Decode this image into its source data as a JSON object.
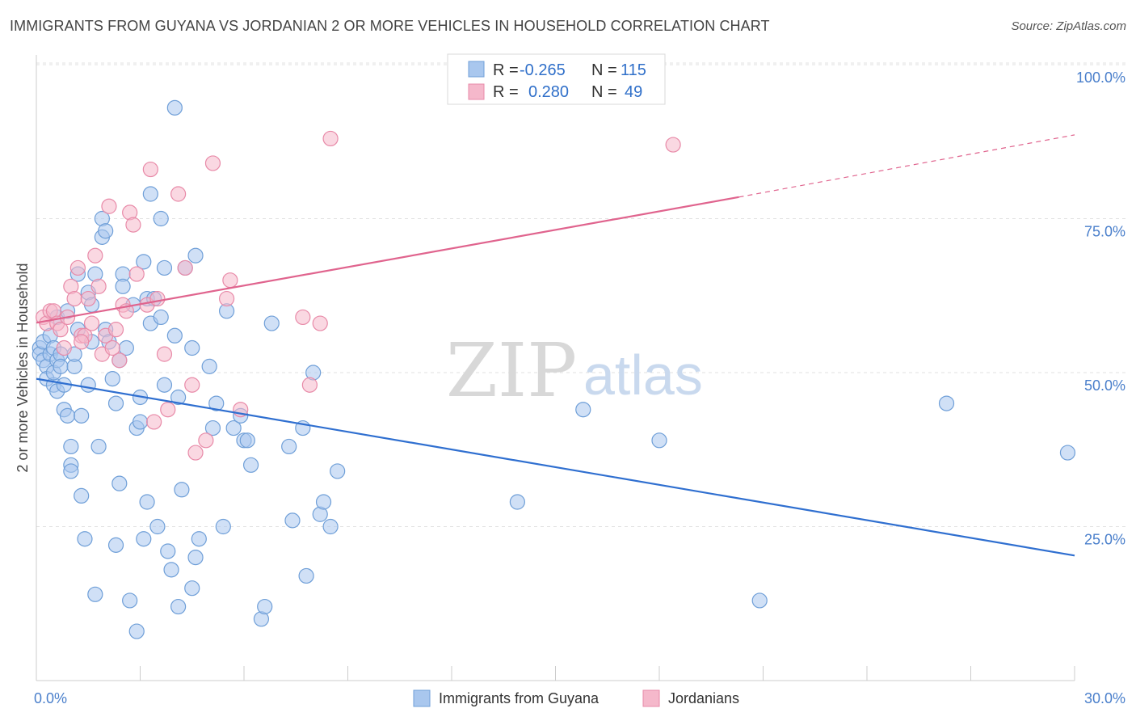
{
  "header": {
    "title": "IMMIGRANTS FROM GUYANA VS JORDANIAN 2 OR MORE VEHICLES IN HOUSEHOLD CORRELATION CHART",
    "source": "Source: ZipAtlas.com"
  },
  "watermark": {
    "zip": "ZIP",
    "atlas": "atlas"
  },
  "legend": {
    "rows": [
      {
        "r_label": "R =",
        "r_value": "-0.265",
        "n_label": "N =",
        "n_value": "115",
        "color": "#a9c7ee"
      },
      {
        "r_label": "R =",
        "r_value": "0.280",
        "n_label": "N =",
        "n_value": "49",
        "color": "#f5b8cb"
      }
    ]
  },
  "bottom_legend": [
    "Immigrants from Guyana",
    "Jordanians"
  ],
  "colors": {
    "blue_fill": "#a9c7ee",
    "blue_stroke": "#6f9fd8",
    "blue_line": "#2f6fd0",
    "pink_fill": "#f5b8cb",
    "pink_stroke": "#e88aa8",
    "pink_line": "#e0648e",
    "tick_text": "#4a7fcb",
    "grid": "#e2e2e2"
  },
  "chart_data": {
    "type": "scatter",
    "ylabel": "2 or more Vehicles in Household",
    "xlim": [
      0,
      30
    ],
    "ylim": [
      0,
      100
    ],
    "x_tick_labels": [
      "0.0%",
      "30.0%"
    ],
    "y_ticks": [
      25,
      50,
      75,
      100
    ],
    "y_tick_labels": [
      "25.0%",
      "50.0%",
      "75.0%",
      "100.0%"
    ],
    "grid": true,
    "legend_position": "top-center",
    "series": [
      {
        "name": "Immigrants from Guyana",
        "color": "#a9c7ee",
        "points": [
          [
            0.1,
            54
          ],
          [
            0.1,
            53
          ],
          [
            0.2,
            52
          ],
          [
            0.2,
            55
          ],
          [
            0.3,
            51
          ],
          [
            0.3,
            49
          ],
          [
            0.4,
            53
          ],
          [
            0.4,
            56
          ],
          [
            0.5,
            48
          ],
          [
            0.5,
            50
          ],
          [
            0.5,
            54
          ],
          [
            0.6,
            52
          ],
          [
            0.6,
            47
          ],
          [
            0.6,
            59
          ],
          [
            0.7,
            53
          ],
          [
            0.7,
            51
          ],
          [
            0.8,
            48
          ],
          [
            0.8,
            44
          ],
          [
            0.9,
            43
          ],
          [
            0.9,
            60
          ],
          [
            1.0,
            38
          ],
          [
            1.0,
            35
          ],
          [
            1.0,
            34
          ],
          [
            1.1,
            51
          ],
          [
            1.1,
            53
          ],
          [
            1.2,
            66
          ],
          [
            1.2,
            57
          ],
          [
            1.3,
            43
          ],
          [
            1.3,
            30
          ],
          [
            1.4,
            23
          ],
          [
            1.5,
            48
          ],
          [
            1.5,
            63
          ],
          [
            1.6,
            61
          ],
          [
            1.6,
            55
          ],
          [
            1.7,
            66
          ],
          [
            1.7,
            14
          ],
          [
            1.8,
            38
          ],
          [
            1.9,
            75
          ],
          [
            1.9,
            72
          ],
          [
            2.0,
            73
          ],
          [
            2.0,
            57
          ],
          [
            2.1,
            55
          ],
          [
            2.2,
            49
          ],
          [
            2.3,
            45
          ],
          [
            2.3,
            22
          ],
          [
            2.4,
            52
          ],
          [
            2.4,
            32
          ],
          [
            2.5,
            66
          ],
          [
            2.5,
            64
          ],
          [
            2.6,
            54
          ],
          [
            2.7,
            13
          ],
          [
            2.8,
            61
          ],
          [
            2.9,
            8
          ],
          [
            2.9,
            41
          ],
          [
            3.0,
            42
          ],
          [
            3.0,
            46
          ],
          [
            3.1,
            23
          ],
          [
            3.1,
            68
          ],
          [
            3.2,
            62
          ],
          [
            3.2,
            29
          ],
          [
            3.3,
            79
          ],
          [
            3.3,
            58
          ],
          [
            3.4,
            62
          ],
          [
            3.5,
            25
          ],
          [
            3.6,
            59
          ],
          [
            3.6,
            75
          ],
          [
            3.7,
            67
          ],
          [
            3.7,
            48
          ],
          [
            3.8,
            21
          ],
          [
            3.9,
            18
          ],
          [
            4.0,
            56
          ],
          [
            4.0,
            93
          ],
          [
            4.1,
            12
          ],
          [
            4.1,
            46
          ],
          [
            4.2,
            31
          ],
          [
            4.3,
            67
          ],
          [
            4.5,
            54
          ],
          [
            4.5,
            15
          ],
          [
            4.6,
            69
          ],
          [
            4.6,
            20
          ],
          [
            4.7,
            23
          ],
          [
            5.0,
            51
          ],
          [
            5.1,
            41
          ],
          [
            5.2,
            45
          ],
          [
            5.4,
            25
          ],
          [
            5.5,
            60
          ],
          [
            5.7,
            41
          ],
          [
            5.9,
            43
          ],
          [
            6.0,
            39
          ],
          [
            6.1,
            39
          ],
          [
            6.2,
            35
          ],
          [
            6.5,
            10
          ],
          [
            6.6,
            12
          ],
          [
            6.8,
            58
          ],
          [
            7.3,
            38
          ],
          [
            7.4,
            26
          ],
          [
            7.7,
            41
          ],
          [
            7.8,
            17
          ],
          [
            8.0,
            50
          ],
          [
            8.2,
            27
          ],
          [
            8.3,
            29
          ],
          [
            8.5,
            25
          ],
          [
            8.7,
            34
          ],
          [
            13.9,
            29
          ],
          [
            15.8,
            44
          ],
          [
            18.0,
            39
          ],
          [
            20.9,
            13
          ],
          [
            26.3,
            45
          ],
          [
            29.8,
            37
          ]
        ]
      },
      {
        "name": "Jordanians",
        "color": "#f5b8cb",
        "points": [
          [
            0.2,
            59
          ],
          [
            0.3,
            58
          ],
          [
            0.4,
            60
          ],
          [
            0.5,
            60
          ],
          [
            0.6,
            58
          ],
          [
            0.7,
            57
          ],
          [
            0.8,
            54
          ],
          [
            0.9,
            59
          ],
          [
            1.0,
            64
          ],
          [
            1.1,
            62
          ],
          [
            1.2,
            67
          ],
          [
            1.3,
            56
          ],
          [
            1.4,
            56
          ],
          [
            1.5,
            62
          ],
          [
            1.6,
            58
          ],
          [
            1.7,
            69
          ],
          [
            1.8,
            64
          ],
          [
            1.9,
            53
          ],
          [
            2.0,
            56
          ],
          [
            2.1,
            77
          ],
          [
            2.3,
            57
          ],
          [
            2.4,
            52
          ],
          [
            2.5,
            61
          ],
          [
            2.6,
            60
          ],
          [
            2.7,
            76
          ],
          [
            2.8,
            74
          ],
          [
            2.9,
            66
          ],
          [
            3.2,
            61
          ],
          [
            3.3,
            83
          ],
          [
            3.4,
            42
          ],
          [
            3.5,
            62
          ],
          [
            3.7,
            53
          ],
          [
            3.8,
            44
          ],
          [
            4.1,
            79
          ],
          [
            4.3,
            67
          ],
          [
            4.5,
            48
          ],
          [
            4.6,
            37
          ],
          [
            4.9,
            39
          ],
          [
            5.1,
            84
          ],
          [
            5.5,
            62
          ],
          [
            5.6,
            65
          ],
          [
            5.9,
            44
          ],
          [
            7.7,
            59
          ],
          [
            7.9,
            48
          ],
          [
            8.2,
            58
          ],
          [
            8.5,
            88
          ],
          [
            18.4,
            87
          ],
          [
            1.3,
            55
          ],
          [
            2.2,
            54
          ]
        ]
      }
    ],
    "trend_lines": [
      {
        "series": "Immigrants from Guyana",
        "x": [
          0,
          30
        ],
        "y": [
          49,
          20.3
        ],
        "style": "solid"
      },
      {
        "series": "Jordanians",
        "x": [
          0,
          20.3
        ],
        "y": [
          58.1,
          78.5
        ],
        "style": "solid"
      },
      {
        "series": "Jordanians",
        "x": [
          20.3,
          30
        ],
        "y": [
          78.5,
          88.6
        ],
        "style": "dashed"
      }
    ]
  }
}
